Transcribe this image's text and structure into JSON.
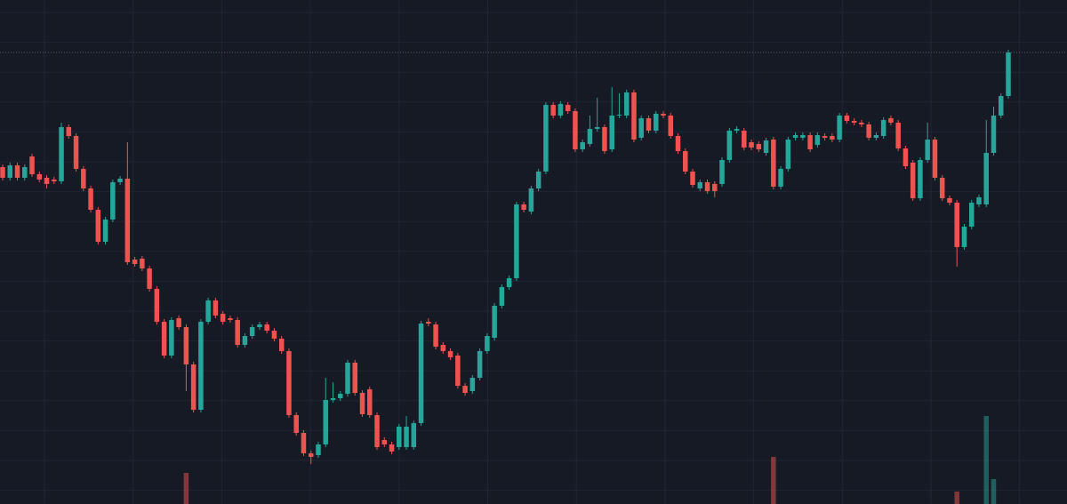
{
  "chart_data": {
    "type": "candlestick",
    "up_color": "#26a69a",
    "down_color": "#ef5350",
    "grid": true,
    "ylim": [
      0,
      567
    ],
    "open": [
      379,
      367,
      381,
      367,
      391,
      371,
      367,
      365,
      363,
      424,
      414,
      377,
      355,
      331,
      295,
      320,
      362,
      366,
      275,
      276,
      265,
      242,
      205,
      167,
      209,
      199,
      157,
      106,
      205,
      229,
      214,
      209,
      207,
      179,
      189,
      199,
      202,
      195,
      186,
      172,
      100,
      80,
      57,
      55,
      67,
      117,
      119,
      124,
      159,
      125,
      129,
      100,
      72,
      67,
      64,
      64,
      64,
      91,
      205,
      202,
      179,
      172,
      167,
      133,
      127,
      142,
      172,
      187,
      223,
      244,
      254,
      337,
      329,
      355,
      374,
      449,
      437,
      449,
      442,
      399,
      405,
      422,
      424,
      399,
      437,
      437,
      463,
      412,
      434,
      420,
      439,
      437,
      414,
      397,
      374,
      355,
      362,
      360,
      360,
      387,
      420,
      420,
      407,
      405,
      395,
      410,
      357,
      377,
      412,
      412,
      415,
      404,
      414,
      414,
      410,
      437,
      431,
      429,
      427,
      412,
      414,
      434,
      429,
      400,
      384,
      344,
      387,
      410,
      367,
      344,
      339,
      289,
      312,
      337,
      337,
      395,
      437,
      459
    ],
    "high": [
      382,
      384,
      384,
      382,
      394,
      374,
      370,
      368,
      429,
      427,
      417,
      380,
      358,
      334,
      323,
      365,
      369,
      407,
      278,
      279,
      268,
      245,
      208,
      210,
      212,
      202,
      160,
      208,
      232,
      232,
      217,
      212,
      210,
      192,
      202,
      205,
      205,
      198,
      189,
      175,
      103,
      83,
      60,
      70,
      142,
      137,
      127,
      162,
      162,
      128,
      132,
      103,
      75,
      70,
      90,
      99,
      94,
      206,
      209,
      205,
      182,
      175,
      170,
      136,
      145,
      175,
      192,
      226,
      247,
      257,
      340,
      340,
      358,
      377,
      452,
      452,
      453,
      452,
      445,
      410,
      437,
      457,
      427,
      469,
      462,
      466,
      466,
      437,
      437,
      442,
      442,
      440,
      417,
      400,
      377,
      365,
      365,
      363,
      390,
      423,
      425,
      423,
      410,
      408,
      412,
      413,
      380,
      413,
      418,
      418,
      418,
      418,
      417,
      417,
      440,
      440,
      434,
      432,
      430,
      418,
      435,
      437,
      432,
      403,
      387,
      390,
      429,
      413,
      370,
      347,
      342,
      315,
      342,
      348,
      432,
      447,
      462,
      511
    ],
    "low": [
      364,
      364,
      364,
      364,
      368,
      362,
      355,
      360,
      360,
      411,
      374,
      352,
      328,
      292,
      292,
      317,
      359,
      269,
      267,
      262,
      239,
      202,
      164,
      164,
      196,
      127,
      103,
      103,
      202,
      209,
      202,
      204,
      176,
      176,
      186,
      196,
      192,
      183,
      169,
      97,
      77,
      54,
      45,
      52,
      64,
      114,
      116,
      121,
      122,
      98,
      97,
      61,
      64,
      56,
      61,
      61,
      61,
      88,
      200,
      174,
      169,
      162,
      130,
      122,
      124,
      139,
      169,
      184,
      220,
      241,
      251,
      328,
      326,
      352,
      371,
      434,
      434,
      439,
      396,
      396,
      402,
      419,
      394,
      396,
      434,
      434,
      407,
      409,
      417,
      417,
      434,
      411,
      394,
      371,
      356,
      352,
      349,
      345,
      357,
      384,
      417,
      398,
      398,
      396,
      392,
      354,
      354,
      374,
      409,
      409,
      396,
      401,
      409,
      407,
      407,
      428,
      426,
      424,
      409,
      409,
      411,
      426,
      397,
      377,
      341,
      341,
      384,
      364,
      341,
      336,
      267,
      286,
      309,
      334,
      334,
      392,
      434,
      456
    ],
    "close": [
      367,
      381,
      367,
      379,
      371,
      365,
      360,
      363,
      424,
      414,
      377,
      355,
      331,
      295,
      320,
      362,
      366,
      272,
      270,
      265,
      242,
      205,
      167,
      207,
      199,
      157,
      106,
      205,
      229,
      212,
      205,
      207,
      179,
      189,
      199,
      202,
      195,
      186,
      172,
      100,
      80,
      57,
      53,
      67,
      117,
      119,
      124,
      159,
      125,
      101,
      100,
      64,
      67,
      59,
      87,
      87,
      91,
      203,
      203,
      177,
      172,
      165,
      133,
      125,
      142,
      172,
      189,
      223,
      244,
      254,
      337,
      331,
      355,
      374,
      449,
      437,
      450,
      442,
      399,
      407,
      422,
      424,
      397,
      437,
      438,
      463,
      410,
      434,
      420,
      439,
      437,
      414,
      397,
      374,
      359,
      362,
      352,
      352,
      387,
      420,
      422,
      401,
      401,
      399,
      409,
      357,
      377,
      410,
      415,
      415,
      399,
      415,
      412,
      410,
      437,
      431,
      429,
      427,
      412,
      415,
      432,
      429,
      400,
      380,
      344,
      387,
      410,
      367,
      344,
      339,
      289,
      312,
      339,
      345,
      395,
      437,
      459,
      508
    ],
    "volume_ylim": [
      0,
      100
    ],
    "volume": [
      0,
      0,
      0,
      0,
      0,
      0,
      0,
      0,
      0,
      0,
      0,
      0,
      0,
      0,
      0,
      0,
      0,
      0,
      0,
      0,
      0,
      0,
      0,
      0,
      0,
      35,
      0,
      0,
      0,
      0,
      0,
      0,
      0,
      0,
      0,
      0,
      0,
      0,
      0,
      0,
      0,
      0,
      0,
      0,
      0,
      0,
      0,
      0,
      0,
      0,
      0,
      0,
      0,
      0,
      0,
      0,
      0,
      0,
      0,
      0,
      0,
      0,
      0,
      0,
      0,
      0,
      0,
      0,
      0,
      0,
      0,
      0,
      0,
      0,
      0,
      0,
      0,
      0,
      0,
      0,
      0,
      0,
      0,
      0,
      0,
      0,
      0,
      0,
      0,
      0,
      0,
      0,
      0,
      0,
      0,
      0,
      0,
      0,
      0,
      0,
      0,
      0,
      0,
      0,
      0,
      53,
      0,
      0,
      0,
      0,
      0,
      0,
      0,
      0,
      0,
      0,
      0,
      0,
      0,
      0,
      0,
      0,
      0,
      0,
      0,
      0,
      0,
      0,
      0,
      0,
      14,
      0,
      0,
      0,
      99,
      28,
      0,
      0
    ]
  }
}
